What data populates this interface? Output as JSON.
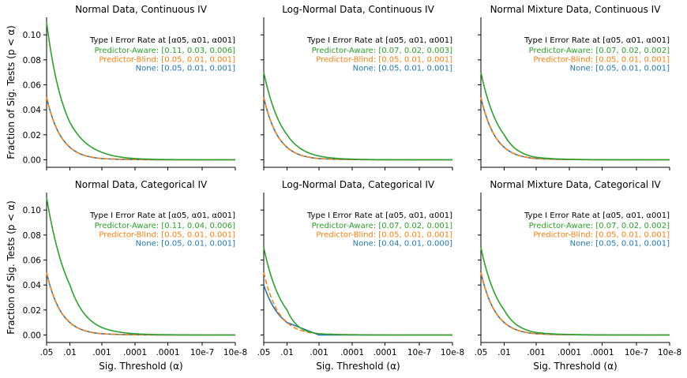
{
  "figure": {
    "ylabel": "Fraction of Sig. Tests (p < α)",
    "xlabel": "Sig. Threshold (α)",
    "legend_header": "Type I Error Rate at [α05, α01, α001]",
    "colors": {
      "Predictor-Aware": "#2ca02c",
      "Predictor-Blind": "#ff7f0e",
      "None": "#1f77b4"
    },
    "x_tick_labels": [
      ".05",
      ".01",
      ".001",
      ".0001",
      ".0001",
      "10e-7",
      "10e-8"
    ],
    "y_tick_labels": [
      "0.00",
      "0.02",
      "0.04",
      "0.06",
      "0.08",
      "0.10"
    ]
  },
  "chart_data": [
    {
      "type": "line",
      "title": "Normal Data, Continuous IV",
      "x": [
        0.05,
        0.01,
        0.001,
        0.0001,
        0.0001,
        1e-06,
        1e-07
      ],
      "ylim": [
        -0.006,
        0.114
      ],
      "series": [
        {
          "name": "Predictor-Aware",
          "legend": "Predictor-Aware: [0.11,  0.03, 0.006]",
          "values": [
            0.11,
            0.03,
            0.006,
            0.001,
            0.0002,
            0.0,
            0.0
          ]
        },
        {
          "name": "Predictor-Blind",
          "legend": "Predictor-Blind: [0.05,  0.01, 0.001]",
          "values": [
            0.05,
            0.01,
            0.001,
            0.0002,
            0.0,
            0.0,
            0.0
          ],
          "dashed": true
        },
        {
          "name": "None",
          "legend": "None: [0.05,  0.01, 0.001]",
          "values": [
            0.05,
            0.01,
            0.001,
            0.0002,
            0.0,
            0.0,
            0.0
          ]
        }
      ]
    },
    {
      "type": "line",
      "title": "Log-Normal Data, Continuous IV",
      "x": [
        0.05,
        0.01,
        0.001,
        0.0001,
        0.0001,
        1e-06,
        1e-07
      ],
      "ylim": [
        -0.006,
        0.114
      ],
      "series": [
        {
          "name": "Predictor-Aware",
          "legend": "Predictor-Aware: [0.07,  0.02, 0.003]",
          "values": [
            0.07,
            0.02,
            0.003,
            0.0005,
            0.0001,
            0.0,
            0.0
          ]
        },
        {
          "name": "Predictor-Blind",
          "legend": "Predictor-Blind: [0.05,  0.01, 0.001]",
          "values": [
            0.05,
            0.01,
            0.001,
            0.0002,
            0.0,
            0.0,
            0.0
          ],
          "dashed": true
        },
        {
          "name": "None",
          "legend": "None: [0.05,  0.01, 0.001]",
          "values": [
            0.05,
            0.01,
            0.001,
            0.0002,
            0.0,
            0.0,
            0.0
          ]
        }
      ]
    },
    {
      "type": "line",
      "title": "Normal Mixture Data, Continuous IV",
      "x": [
        0.05,
        0.01,
        0.001,
        0.0001,
        0.0001,
        1e-06,
        1e-07
      ],
      "ylim": [
        -0.006,
        0.114
      ],
      "series": [
        {
          "name": "Predictor-Aware",
          "legend": "Predictor-Aware: [0.07,  0.02, 0.002]",
          "values": [
            0.07,
            0.02,
            0.002,
            0.0004,
            0.0001,
            0.0,
            0.0
          ]
        },
        {
          "name": "Predictor-Blind",
          "legend": "Predictor-Blind: [0.05,  0.01, 0.001]",
          "values": [
            0.05,
            0.01,
            0.001,
            0.0002,
            0.0,
            0.0,
            0.0
          ],
          "dashed": true
        },
        {
          "name": "None",
          "legend": "None: [0.05,  0.01, 0.001]",
          "values": [
            0.05,
            0.01,
            0.001,
            0.0002,
            0.0,
            0.0,
            0.0
          ]
        }
      ]
    },
    {
      "type": "line",
      "title": "Normal Data, Categorical IV",
      "x": [
        0.05,
        0.01,
        0.001,
        0.0001,
        0.0001,
        1e-06,
        1e-07
      ],
      "ylim": [
        -0.006,
        0.114
      ],
      "series": [
        {
          "name": "Predictor-Aware",
          "legend": "Predictor-Aware: [0.11,  0.04, 0.006]",
          "values": [
            0.11,
            0.04,
            0.006,
            0.001,
            0.0002,
            0.0,
            0.0
          ]
        },
        {
          "name": "Predictor-Blind",
          "legend": "Predictor-Blind: [0.05,  0.01, 0.001]",
          "values": [
            0.05,
            0.01,
            0.001,
            0.0002,
            0.0,
            0.0,
            0.0
          ],
          "dashed": true
        },
        {
          "name": "None",
          "legend": "None: [0.05,  0.01, 0.001]",
          "values": [
            0.05,
            0.01,
            0.001,
            0.0002,
            0.0,
            0.0,
            0.0
          ]
        }
      ]
    },
    {
      "type": "line",
      "title": "Log-Normal Data, Categorical IV",
      "x": [
        0.05,
        0.01,
        0.001,
        0.0001,
        0.0001,
        1e-06,
        1e-07
      ],
      "ylim": [
        -0.006,
        0.114
      ],
      "series": [
        {
          "name": "Predictor-Aware",
          "legend": "Predictor-Aware: [0.07,  0.02, 0.001]",
          "values": [
            0.07,
            0.02,
            0.001,
            0.0002,
            0.0,
            0.0,
            0.0
          ]
        },
        {
          "name": "Predictor-Blind",
          "legend": "Predictor-Blind: [0.05,  0.01, 0.001]",
          "values": [
            0.05,
            0.01,
            0.001,
            0.0002,
            0.0,
            0.0,
            0.0
          ],
          "dashed": true
        },
        {
          "name": "None",
          "legend": "None: [0.04,  0.01, 0.000]",
          "values": [
            0.04,
            0.01,
            0.0,
            0.0,
            0.0,
            0.0,
            0.0
          ]
        }
      ]
    },
    {
      "type": "line",
      "title": "Normal Mixture Data, Categorical IV",
      "x": [
        0.05,
        0.01,
        0.001,
        0.0001,
        0.0001,
        1e-06,
        1e-07
      ],
      "ylim": [
        -0.006,
        0.114
      ],
      "series": [
        {
          "name": "Predictor-Aware",
          "legend": "Predictor-Aware: [0.07,  0.02, 0.002]",
          "values": [
            0.07,
            0.02,
            0.002,
            0.0004,
            0.0001,
            0.0,
            0.0
          ]
        },
        {
          "name": "Predictor-Blind",
          "legend": "Predictor-Blind: [0.05,  0.01, 0.001]",
          "values": [
            0.05,
            0.01,
            0.001,
            0.0002,
            0.0,
            0.0,
            0.0
          ],
          "dashed": true
        },
        {
          "name": "None",
          "legend": "None: [0.05,  0.01, 0.001]",
          "values": [
            0.05,
            0.01,
            0.001,
            0.0002,
            0.0,
            0.0,
            0.0
          ]
        }
      ]
    }
  ]
}
